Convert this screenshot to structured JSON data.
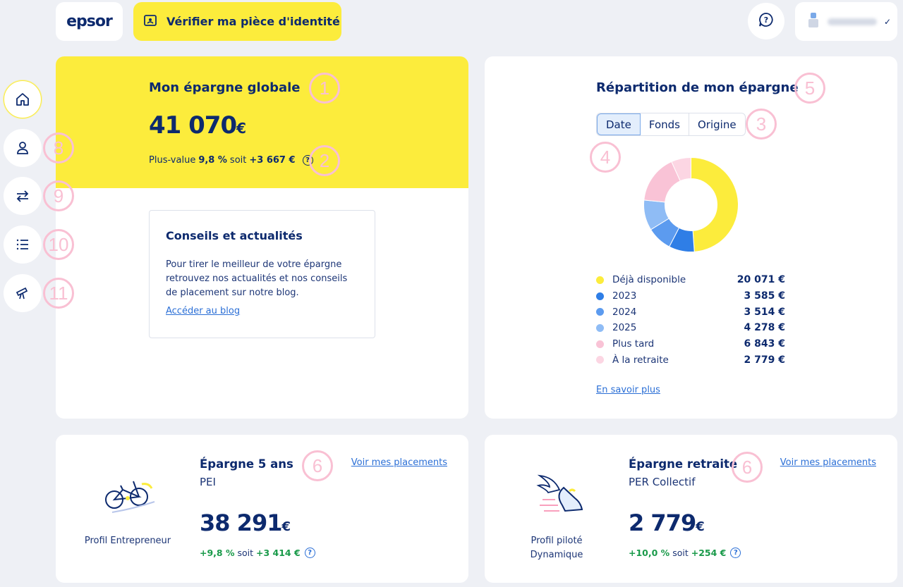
{
  "header": {
    "logo_text": "epsor",
    "verify_label": "Vérifier ma pièce d'identité"
  },
  "annotations": [
    "1",
    "2",
    "3",
    "4",
    "5",
    "6",
    "6",
    "8",
    "9",
    "10",
    "11"
  ],
  "global": {
    "title": "Mon épargne globale",
    "amount": "41 070",
    "currency": "€",
    "gain_prefix": "Plus-value",
    "gain_pct": "9,8 %",
    "gain_mid": "soit",
    "gain_amount": "+3 667 €"
  },
  "advice": {
    "title": "Conseils et actualités",
    "text": "Pour tirer le meilleur de votre épargne retrouvez nos actualités et nos conseils de placement sur notre blog.",
    "link": "Accéder au blog"
  },
  "repartition": {
    "title": "Répartition de mon épargne",
    "tabs": [
      "Date",
      "Fonds",
      "Origine"
    ],
    "active_tab": "Date",
    "more_link": "En savoir plus"
  },
  "chart_data": {
    "type": "pie",
    "title": "Répartition de mon épargne",
    "categories": [
      "Déjà disponible",
      "2023",
      "2024",
      "2025",
      "Plus tard",
      "À la retraite"
    ],
    "values": [
      20071,
      3585,
      3514,
      4278,
      6843,
      2779
    ],
    "value_labels": [
      "20 071 €",
      "3 585 €",
      "3 514 €",
      "4 278 €",
      "6 843 €",
      "2 779 €"
    ],
    "colors": [
      "#fcec3c",
      "#2f7ee6",
      "#5c9bef",
      "#8fbcf5",
      "#f9c3d6",
      "#fcd6e3"
    ]
  },
  "pei": {
    "title": "Épargne 5 ans",
    "subtitle": "PEI",
    "link": "Voir mes placements",
    "amount": "38 291",
    "currency": "€",
    "perf_pct": "+9,8 %",
    "perf_mid": "soit",
    "perf_amount": "+3 414 €",
    "profile": "Profil Entrepreneur"
  },
  "per": {
    "title": "Épargne retraite",
    "subtitle": "PER Collectif",
    "link": "Voir mes placements",
    "amount": "2 779",
    "currency": "€",
    "perf_pct": "+10,0 %",
    "perf_mid": "soit",
    "perf_amount": "+254 €",
    "profile_line1": "Profil piloté",
    "profile_line2": "Dynamique"
  }
}
